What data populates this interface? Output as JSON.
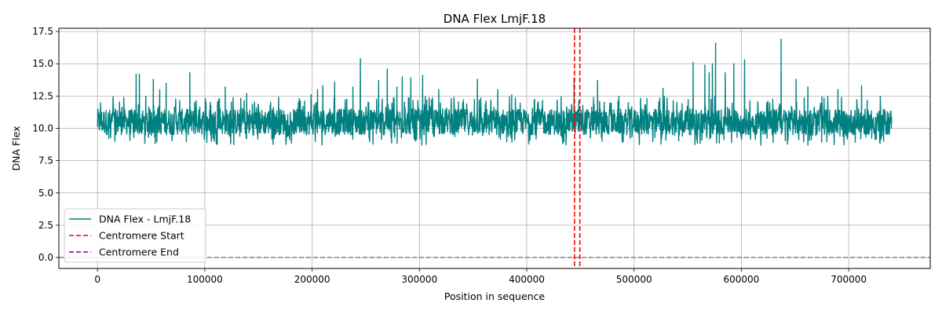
{
  "chart_data": {
    "type": "line",
    "title": "DNA Flex LmjF.18",
    "xlabel": "Position in sequence",
    "ylabel": "DNA Flex",
    "xlim": [
      -36000,
      776000
    ],
    "ylim": [
      -0.85,
      17.75
    ],
    "xticks": [
      0,
      100000,
      200000,
      300000,
      400000,
      500000,
      600000,
      700000
    ],
    "xtick_labels": [
      "0",
      "100000",
      "200000",
      "300000",
      "400000",
      "500000",
      "600000",
      "700000"
    ],
    "yticks": [
      0.0,
      2.5,
      5.0,
      7.5,
      10.0,
      12.5,
      15.0,
      17.5
    ],
    "ytick_labels": [
      "0.0",
      "2.5",
      "5.0",
      "7.5",
      "10.0",
      "12.5",
      "15.0",
      "17.5"
    ],
    "grid": true,
    "legend_position": "lower-left",
    "series": [
      {
        "name": "DNA Flex - LmjF.18",
        "color": "#008080",
        "style": "solid",
        "x_start": 0,
        "x_end": 740000,
        "baseline_range": [
          9.5,
          11.5
        ],
        "band_min": 8.7,
        "band_max": 12.5,
        "peaks": [
          {
            "x": 36000,
            "y": 14.2
          },
          {
            "x": 39000,
            "y": 14.2
          },
          {
            "x": 52000,
            "y": 13.8
          },
          {
            "x": 58000,
            "y": 13.0
          },
          {
            "x": 64000,
            "y": 13.5
          },
          {
            "x": 86000,
            "y": 14.3
          },
          {
            "x": 119000,
            "y": 13.2
          },
          {
            "x": 139000,
            "y": 12.7
          },
          {
            "x": 188000,
            "y": 12.3
          },
          {
            "x": 199000,
            "y": 12.6
          },
          {
            "x": 205000,
            "y": 13.0
          },
          {
            "x": 210000,
            "y": 13.3
          },
          {
            "x": 221000,
            "y": 13.6
          },
          {
            "x": 238000,
            "y": 13.2
          },
          {
            "x": 245000,
            "y": 15.4
          },
          {
            "x": 262000,
            "y": 13.7
          },
          {
            "x": 270000,
            "y": 14.6
          },
          {
            "x": 279000,
            "y": 13.2
          },
          {
            "x": 284000,
            "y": 14.0
          },
          {
            "x": 292000,
            "y": 13.9
          },
          {
            "x": 303000,
            "y": 14.1
          },
          {
            "x": 318000,
            "y": 13.0
          },
          {
            "x": 354000,
            "y": 13.8
          },
          {
            "x": 373000,
            "y": 13.0
          },
          {
            "x": 386000,
            "y": 12.6
          },
          {
            "x": 444000,
            "y": 13.9
          },
          {
            "x": 466000,
            "y": 13.7
          },
          {
            "x": 485000,
            "y": 12.1
          },
          {
            "x": 512000,
            "y": 12.3
          },
          {
            "x": 527000,
            "y": 13.1
          },
          {
            "x": 555000,
            "y": 15.1
          },
          {
            "x": 566000,
            "y": 14.9
          },
          {
            "x": 570000,
            "y": 14.3
          },
          {
            "x": 573000,
            "y": 15.0
          },
          {
            "x": 576000,
            "y": 16.6
          },
          {
            "x": 585000,
            "y": 14.3
          },
          {
            "x": 593000,
            "y": 15.0
          },
          {
            "x": 603000,
            "y": 15.3
          },
          {
            "x": 637000,
            "y": 16.9
          },
          {
            "x": 651000,
            "y": 13.8
          },
          {
            "x": 662000,
            "y": 13.2
          },
          {
            "x": 690000,
            "y": 13.0
          },
          {
            "x": 712000,
            "y": 13.3
          }
        ]
      },
      {
        "name": "Centromere Start",
        "color": "#ff0000",
        "style": "dashed",
        "type": "vline",
        "x": 444500
      },
      {
        "name": "Centromere End",
        "color": "#800080",
        "style": "dashed",
        "type": "vline",
        "x": 449500
      }
    ],
    "reference_line": {
      "y": 0.0,
      "color": "#808080",
      "style": "dashed"
    },
    "centromere_overlay_color": "#ff0000"
  }
}
